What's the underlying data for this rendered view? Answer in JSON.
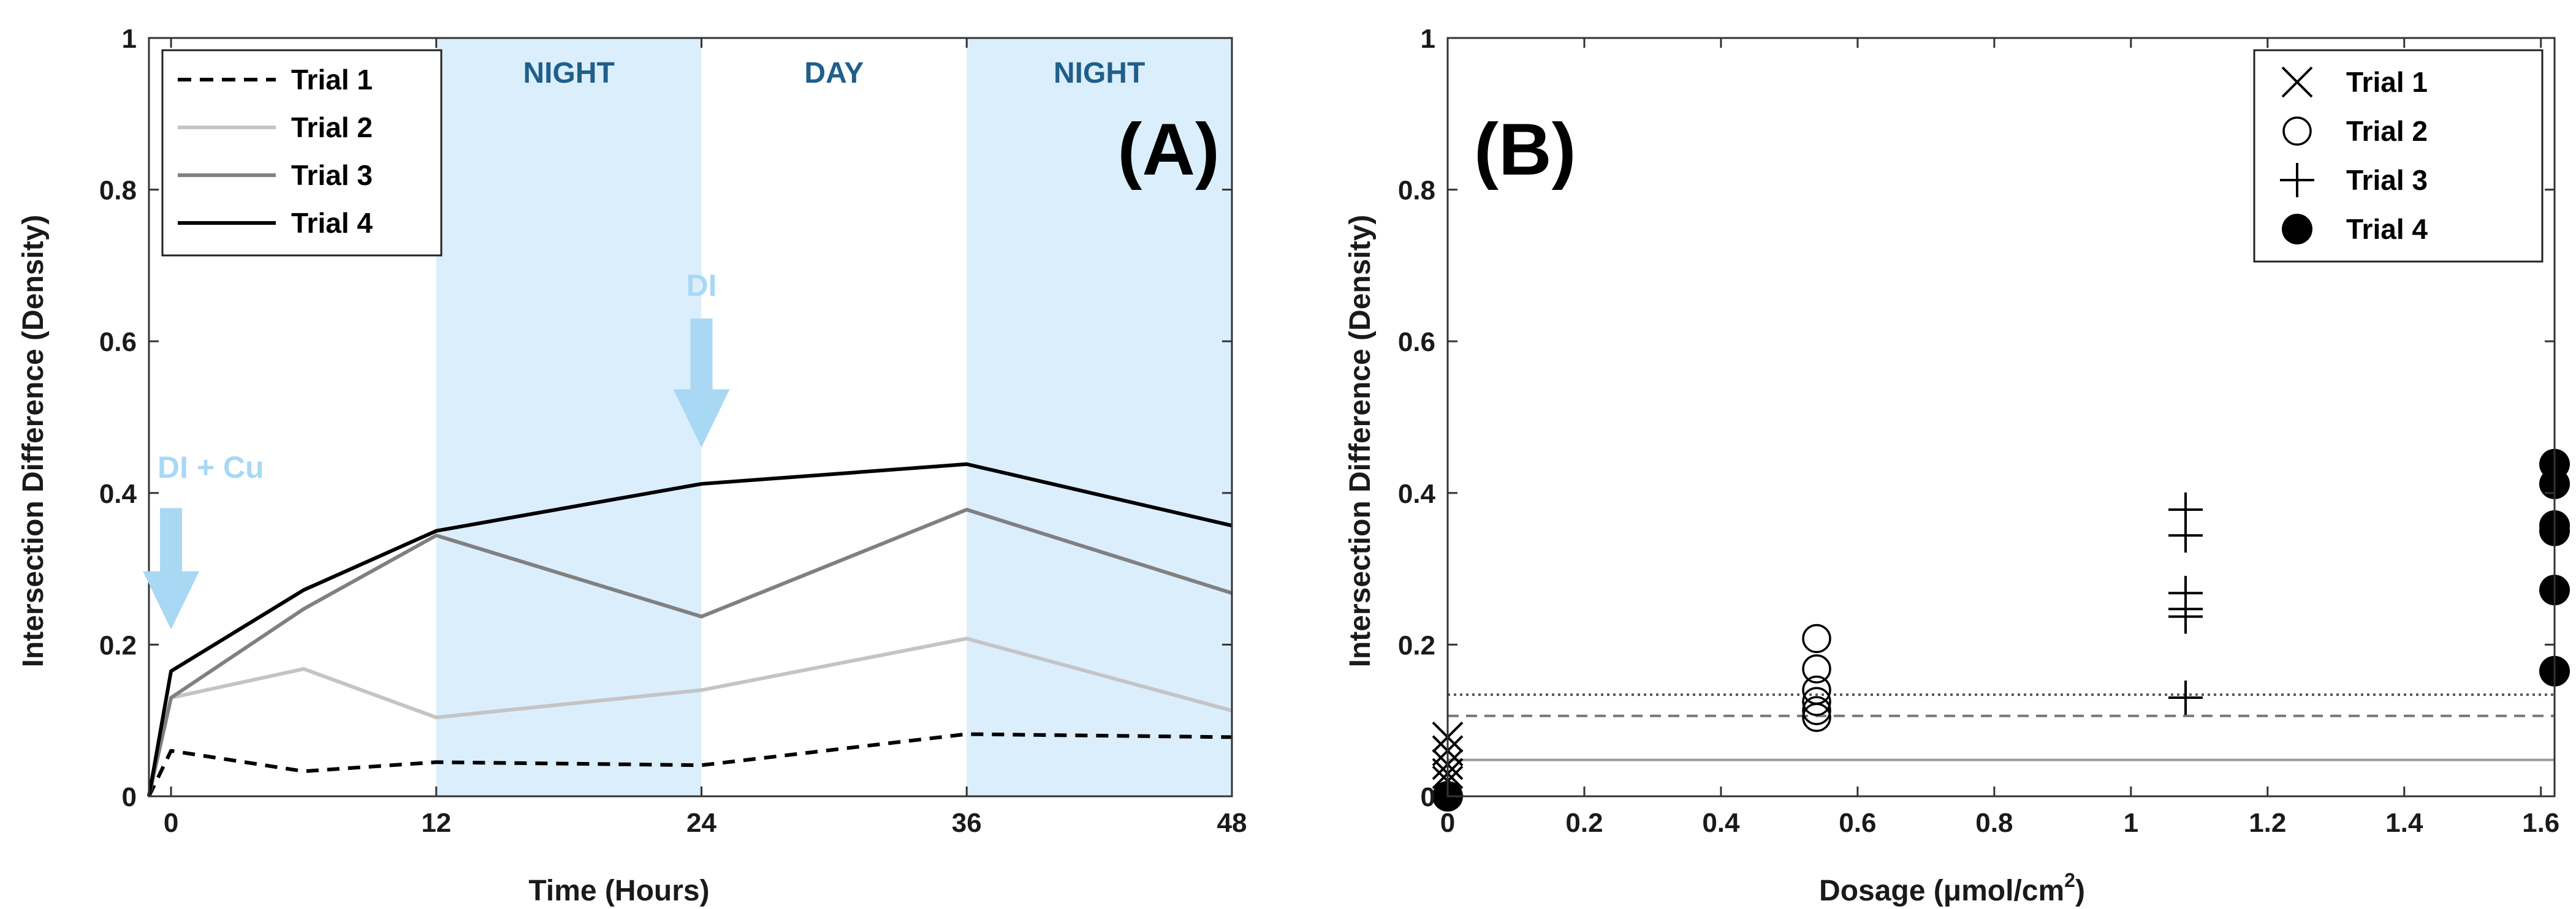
{
  "colors": {
    "night_band": "#dbeefb",
    "arrow": "#a8d8f4",
    "band_label": "#1f5f8b",
    "axis": "#333333"
  },
  "chart_data": [
    {
      "type": "line",
      "panel_label": "(A)",
      "xlabel": "Time (Hours)",
      "ylabel": "Intersection Difference (Density)",
      "xlim": [
        -1,
        48
      ],
      "ylim": [
        0,
        1
      ],
      "xticks": [
        0,
        12,
        24,
        36,
        48
      ],
      "xtick_labels": [
        "0",
        "12",
        "24",
        "36",
        "48"
      ],
      "yticks": [
        0,
        0.2,
        0.4,
        0.6,
        0.8,
        1
      ],
      "ytick_labels": [
        "0",
        "0.2",
        "0.4",
        "0.6",
        "0.8",
        "1"
      ],
      "bands": [
        {
          "x0": 12,
          "x1": 24,
          "label": "NIGHT",
          "shaded": true
        },
        {
          "x0": 24,
          "x1": 36,
          "label": "DAY",
          "shaded": false
        },
        {
          "x0": 36,
          "x1": 48,
          "label": "NIGHT",
          "shaded": true
        }
      ],
      "annotations": [
        {
          "label": "DI + Cu",
          "x": 0,
          "y_text": 0.42,
          "y_arrow_top": 0.38,
          "y_arrow_tip": 0.22
        },
        {
          "label": "DI",
          "x": 24,
          "y_text": 0.66,
          "y_arrow_top": 0.63,
          "y_arrow_tip": 0.46
        }
      ],
      "legend_position": "top-left",
      "series": [
        {
          "name": "Trial 1",
          "style": "dashed",
          "color": "#000000",
          "x": [
            -1,
            0,
            6,
            12,
            24,
            36,
            48
          ],
          "y": [
            0,
            0.06,
            0.033,
            0.045,
            0.041,
            0.082,
            0.078
          ]
        },
        {
          "name": "Trial 2",
          "style": "solid",
          "color": "#c4c4c4",
          "x": [
            -1,
            0,
            6,
            12,
            24,
            36,
            48
          ],
          "y": [
            0,
            0.13,
            0.168,
            0.104,
            0.14,
            0.208,
            0.113
          ]
        },
        {
          "name": "Trial 3",
          "style": "solid",
          "color": "#808080",
          "x": [
            -1,
            0,
            6,
            12,
            24,
            36,
            48
          ],
          "y": [
            0,
            0.13,
            0.247,
            0.344,
            0.237,
            0.378,
            0.268
          ]
        },
        {
          "name": "Trial 4",
          "style": "solid",
          "color": "#000000",
          "x": [
            -1,
            0,
            6,
            12,
            24,
            36,
            48
          ],
          "y": [
            0,
            0.165,
            0.272,
            0.35,
            0.412,
            0.438,
            0.357
          ]
        }
      ]
    },
    {
      "type": "scatter",
      "panel_label": "(B)",
      "xlabel_prefix": "Dosage (",
      "xlabel_unit": "μmol/cm",
      "xlabel_sup": "2",
      "xlabel_suffix": ")",
      "ylabel": "Intersection Difference (Density)",
      "xlim": [
        0,
        1.62
      ],
      "ylim": [
        0,
        1
      ],
      "xticks": [
        0,
        0.2,
        0.4,
        0.6,
        0.8,
        1,
        1.2,
        1.4,
        1.6
      ],
      "xtick_labels": [
        "0",
        "0.2",
        "0.4",
        "0.6",
        "0.8",
        "1",
        "1.2",
        "1.4",
        "1.6"
      ],
      "yticks": [
        0,
        0.2,
        0.4,
        0.6,
        0.8,
        1
      ],
      "ytick_labels": [
        "0",
        "0.2",
        "0.4",
        "0.6",
        "0.8",
        "1"
      ],
      "legend_position": "top-right",
      "reference_lines": [
        {
          "y": 0.134,
          "style": "dotted",
          "color": "#555555"
        },
        {
          "y": 0.106,
          "style": "dashed",
          "color": "#777777"
        },
        {
          "y": 0.048,
          "style": "solid",
          "color": "#999999"
        }
      ],
      "series": [
        {
          "name": "Trial 1",
          "marker": "x",
          "x": [
            0,
            0,
            0,
            0,
            0
          ],
          "y": [
            0.078,
            0.06,
            0.042,
            0.03,
            0.02
          ]
        },
        {
          "name": "Trial 2",
          "marker": "circle-open",
          "x": [
            0.54,
            0.54,
            0.54,
            0.54,
            0.54,
            0.54
          ],
          "y": [
            0.208,
            0.168,
            0.14,
            0.125,
            0.113,
            0.104
          ]
        },
        {
          "name": "Trial 3",
          "marker": "plus",
          "x": [
            1.08,
            1.08,
            1.08,
            1.08,
            1.08,
            1.08
          ],
          "y": [
            0.378,
            0.344,
            0.268,
            0.247,
            0.237,
            0.13
          ]
        },
        {
          "name": "Trial 4",
          "marker": "circle-filled",
          "x": [
            0,
            1.62,
            1.62,
            1.62,
            1.62,
            1.62,
            1.62
          ],
          "y": [
            0,
            0.438,
            0.412,
            0.357,
            0.35,
            0.272,
            0.165
          ]
        }
      ]
    }
  ]
}
